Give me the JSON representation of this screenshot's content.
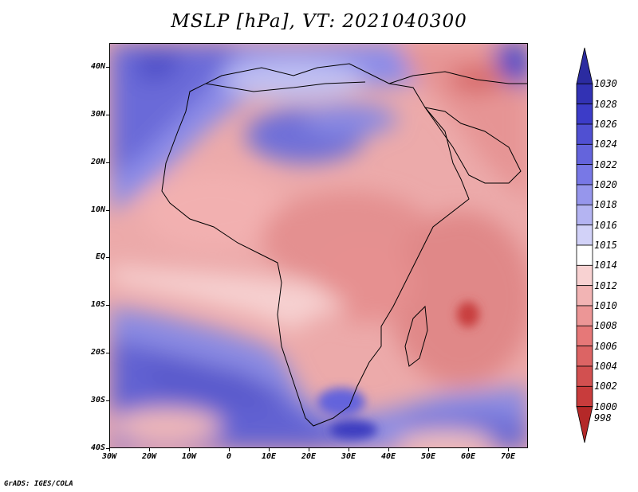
{
  "title": "MSLP [hPa], VT: 2021040300",
  "credit": "GrADS: IGES/COLA",
  "map": {
    "lat_range": [
      -40,
      45
    ],
    "lon_range": [
      -30,
      75
    ],
    "lat_labels": [
      {
        "value": 40,
        "text": "40N"
      },
      {
        "value": 30,
        "text": "30N"
      },
      {
        "value": 20,
        "text": "20N"
      },
      {
        "value": 10,
        "text": "10N"
      },
      {
        "value": 0,
        "text": "EQ"
      },
      {
        "value": -10,
        "text": "10S"
      },
      {
        "value": -20,
        "text": "20S"
      },
      {
        "value": -30,
        "text": "30S"
      },
      {
        "value": -40,
        "text": "40S"
      }
    ],
    "lon_labels": [
      {
        "value": -30,
        "text": "30W"
      },
      {
        "value": -20,
        "text": "20W"
      },
      {
        "value": -10,
        "text": "10W"
      },
      {
        "value": 0,
        "text": "0"
      },
      {
        "value": 10,
        "text": "10E"
      },
      {
        "value": 20,
        "text": "20E"
      },
      {
        "value": 30,
        "text": "30E"
      },
      {
        "value": 40,
        "text": "40E"
      },
      {
        "value": 50,
        "text": "50E"
      },
      {
        "value": 60,
        "text": "60E"
      },
      {
        "value": 70,
        "text": "70E"
      }
    ]
  },
  "colorbar": {
    "levels": [
      "1030",
      "1028",
      "1026",
      "1024",
      "1022",
      "1020",
      "1018",
      "1016",
      "1015",
      "1014",
      "1012",
      "1010",
      "1008",
      "1006",
      "1004",
      "1002",
      "1000",
      "998"
    ],
    "colors": [
      "#2b2ba0",
      "#3232b4",
      "#3c3cc8",
      "#5050d2",
      "#6464dc",
      "#7878e6",
      "#9696ec",
      "#b4b4f2",
      "#d2d2f8",
      "#ffffff",
      "#f8d2d2",
      "#f2b4b4",
      "#ec9696",
      "#e67878",
      "#dc6464",
      "#d25050",
      "#c83c3c",
      "#b42828"
    ]
  }
}
